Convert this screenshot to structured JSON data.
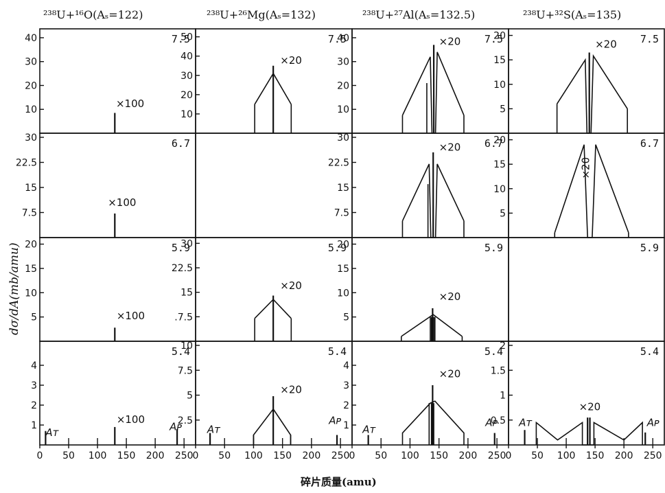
{
  "columns": [
    {
      "title": "²³⁸U+¹⁶O(Aₛ=122)"
    },
    {
      "title": "²³⁸U+²⁶Mg(Aₛ=132)"
    },
    {
      "title": "²³⁸U+²⁷Al(Aₛ=132.5)"
    },
    {
      "title": "²³⁸U+³²S(Aₛ=135)"
    }
  ],
  "energies": [
    "7.5",
    "6.7",
    "5.9",
    "5.4"
  ],
  "ylabel": "dσ/dA(mb/amu)",
  "xlabel": "碎片质量(amu)",
  "xticks": [
    0,
    50,
    100,
    150,
    200,
    250
  ],
  "xticklabels": [
    "0",
    "50",
    "100",
    "150",
    "200",
    "250"
  ],
  "marker_AT": "Aᴛ",
  "marker_AP": "Aᴘ",
  "chart_data": {
    "type": "line",
    "xlim": [
      0,
      270
    ],
    "panels": [
      {
        "row": 0,
        "col": 0,
        "energy": "7.5",
        "ylim": [
          0,
          42
        ],
        "yticks": [
          10,
          20,
          30,
          40
        ],
        "yticklabels": [
          "10",
          "20",
          "30",
          "40"
        ],
        "curve": [],
        "bars": [
          {
            "x": 130,
            "y": 8.5
          }
        ],
        "scale": "×100",
        "scale_pos": [
          132,
          11
        ]
      },
      {
        "row": 0,
        "col": 1,
        "energy": "7.5",
        "ylim": [
          0,
          52
        ],
        "yticks": [
          10,
          20,
          30,
          40,
          50
        ],
        "yticklabels": [
          "10",
          "20",
          "30",
          "40",
          "50"
        ],
        "curve": [
          [
            102,
            15
          ],
          [
            134,
            31
          ],
          [
            165,
            15
          ]
        ],
        "vlines": [
          [
            102,
            0,
            15
          ],
          [
            165,
            0,
            15
          ]
        ],
        "bars": [
          {
            "x": 134,
            "y": 35
          }
        ],
        "scale": "×20",
        "scale_pos": [
          146,
          36
        ]
      },
      {
        "row": 0,
        "col": 2,
        "energy": "7.5",
        "ylim": [
          0,
          42
        ],
        "yticks": [
          10,
          20,
          30,
          40
        ],
        "yticklabels": [
          "10",
          "20",
          "30",
          "40"
        ],
        "curve": [
          [
            87,
            7.5
          ],
          [
            135,
            32
          ],
          [
            138,
            0
          ],
          [
            144,
            0
          ],
          [
            147,
            34
          ],
          [
            193,
            7.5
          ]
        ],
        "vlines": [
          [
            87,
            0,
            7.5
          ],
          [
            129,
            0,
            21
          ],
          [
            193,
            0,
            7.5
          ]
        ],
        "bars": [
          {
            "x": 141,
            "y": 37
          }
        ],
        "scale": "×20",
        "scale_pos": [
          150,
          37
        ]
      },
      {
        "row": 0,
        "col": 3,
        "energy": "7.5",
        "ylim": [
          0,
          20.5
        ],
        "yticks": [
          5,
          10,
          15,
          20
        ],
        "yticklabels": [
          "5",
          "10",
          "15",
          "20"
        ],
        "curve": [
          [
            84,
            6
          ],
          [
            133,
            15
          ],
          [
            136,
            0
          ],
          [
            143,
            0
          ],
          [
            147,
            15.8
          ],
          [
            206,
            5
          ]
        ],
        "vlines": [
          [
            84,
            0,
            6
          ],
          [
            206,
            0,
            5
          ]
        ],
        "bars": [
          {
            "x": 140,
            "y": 16.5
          }
        ],
        "scale": "×20",
        "scale_pos": [
          150,
          17.5
        ]
      },
      {
        "row": 1,
        "col": 0,
        "energy": "6.7",
        "ylim": [
          0,
          30
        ],
        "yticks": [
          7.5,
          15,
          22.5,
          30
        ],
        "yticklabels": [
          "7.5",
          "15",
          "22.5",
          "30"
        ],
        "curve": [],
        "bars": [
          {
            "x": 130,
            "y": 7.2
          }
        ],
        "scale": "×100",
        "scale_pos": [
          118,
          9.5
        ]
      },
      {
        "row": 1,
        "col": 1,
        "energy": "",
        "ylim": [
          0,
          30
        ],
        "yticks": [],
        "yticklabels": [],
        "curve": [],
        "bars": [],
        "scale": "",
        "scale_pos": [
          0,
          0
        ]
      },
      {
        "row": 1,
        "col": 2,
        "energy": "6.7",
        "ylim": [
          0,
          30
        ],
        "yticks": [
          7.5,
          15,
          22.5,
          30
        ],
        "yticklabels": [
          "7.5",
          "15",
          "22.5",
          "30"
        ],
        "curve": [
          [
            87,
            5
          ],
          [
            133,
            22
          ],
          [
            136,
            0
          ],
          [
            144,
            0
          ],
          [
            147,
            22
          ],
          [
            193,
            5
          ]
        ],
        "vlines": [
          [
            87,
            0,
            5
          ],
          [
            193,
            0,
            5
          ],
          [
            131,
            0,
            16
          ]
        ],
        "bars": [
          {
            "x": 140,
            "y": 25.5
          }
        ],
        "scale": "×20",
        "scale_pos": [
          150,
          26
        ]
      },
      {
        "row": 1,
        "col": 3,
        "energy": "6.7",
        "ylim": [
          0,
          20.5
        ],
        "yticks": [
          5,
          10,
          15,
          20
        ],
        "yticklabels": [
          "5",
          "10",
          "15",
          "20"
        ],
        "curve": [
          [
            80,
            1
          ],
          [
            131,
            19
          ],
          [
            137,
            0
          ],
          [
            145,
            0
          ],
          [
            151,
            19
          ],
          [
            208,
            1
          ]
        ],
        "vlines": [
          [
            80,
            0,
            1
          ],
          [
            208,
            0,
            1
          ]
        ],
        "bars": [],
        "scale": "×20",
        "scale_pos": [
          140,
          12
        ],
        "scale_rotate": true
      },
      {
        "row": 2,
        "col": 0,
        "energy": "5.9",
        "ylim": [
          0,
          20.5
        ],
        "yticks": [
          5,
          10,
          15,
          20
        ],
        "yticklabels": [
          "5",
          "10",
          "15",
          "20"
        ],
        "curve": [],
        "bars": [
          {
            "x": 130,
            "y": 2.8
          }
        ],
        "scale": "×100",
        "scale_pos": [
          133,
          4.5
        ]
      },
      {
        "row": 2,
        "col": 1,
        "energy": "5.9",
        "ylim": [
          0,
          30.5
        ],
        "yticks": [
          7.5,
          15,
          22.5,
          30
        ],
        "yticklabels": [
          ".7.5",
          "15",
          "22.5",
          "30"
        ],
        "curve": [
          [
            102,
            7
          ],
          [
            134,
            12.8
          ],
          [
            165,
            7
          ]
        ],
        "vlines": [
          [
            102,
            0,
            7
          ],
          [
            165,
            0,
            7
          ]
        ],
        "bars": [
          {
            "x": 134,
            "y": 14
          }
        ],
        "scale": "×20",
        "scale_pos": [
          146,
          16
        ]
      },
      {
        "row": 2,
        "col": 2,
        "energy": "5.9",
        "ylim": [
          0,
          20.5
        ],
        "yticks": [
          5,
          10,
          15,
          20
        ],
        "yticklabels": [
          "5",
          "10",
          "15",
          "20"
        ],
        "curve": [
          [
            85,
            1
          ],
          [
            140,
            5.5
          ],
          [
            190,
            1
          ]
        ],
        "vlines": [
          [
            85,
            0,
            1
          ],
          [
            190,
            0,
            1
          ],
          [
            135,
            0,
            5
          ],
          [
            137,
            0,
            5
          ],
          [
            141,
            0,
            5
          ],
          [
            143,
            0,
            5
          ]
        ],
        "bars": [
          {
            "x": 139,
            "y": 6.8
          }
        ],
        "scale": "×20",
        "scale_pos": [
          150,
          8.5
        ]
      },
      {
        "row": 2,
        "col": 3,
        "energy": "5.9",
        "ylim": [
          0,
          20
        ],
        "yticks": [],
        "yticklabels": [],
        "curve": [],
        "bars": [],
        "scale": "",
        "scale_pos": [
          0,
          0
        ]
      },
      {
        "row": 3,
        "col": 0,
        "energy": "5.4",
        "ylim": [
          0,
          5
        ],
        "yticks": [
          1,
          2,
          3,
          4
        ],
        "yticklabels": [
          "1",
          "2",
          "3",
          "4"
        ],
        "curve": [],
        "bars": [
          {
            "x": 10,
            "y": 0.7
          },
          {
            "x": 130,
            "y": 0.9
          },
          {
            "x": 238,
            "y": 0.8
          }
        ],
        "minor_bars": [
          50,
          100,
          150,
          200,
          250
        ],
        "scale": "×100",
        "scale_pos": [
          133,
          1.1
        ],
        "AT": [
          10,
          0.45
        ],
        "AP": [
          225,
          0.75
        ]
      },
      {
        "row": 3,
        "col": 1,
        "energy": "5.4",
        "ylim": [
          0,
          10
        ],
        "yticks": [
          2.5,
          5,
          7.5,
          10
        ],
        "yticklabels": [
          "2.5",
          "5",
          "7.5",
          "10"
        ],
        "curve": [
          [
            100,
            0
          ],
          [
            100,
            1
          ],
          [
            134,
            3.6
          ],
          [
            164,
            1
          ],
          [
            164,
            0
          ]
        ],
        "vlines": [
          [
            100,
            0,
            1
          ],
          [
            164,
            0,
            1
          ]
        ],
        "bars": [
          {
            "x": 25,
            "y": 1.2
          },
          {
            "x": 134,
            "y": 4.9
          },
          {
            "x": 244,
            "y": 1
          }
        ],
        "minor_bars": [
          50,
          100,
          150,
          200,
          250
        ],
        "scale": "×20",
        "scale_pos": [
          146,
          5.2
        ],
        "AT": [
          20,
          1.2
        ],
        "AP": [
          230,
          2.1
        ]
      },
      {
        "row": 3,
        "col": 2,
        "energy": "5.4",
        "ylim": [
          0,
          5
        ],
        "yticks": [
          1,
          2,
          3,
          4
        ],
        "yticklabels": [
          "1",
          "2",
          "3",
          "4"
        ],
        "curve": [
          [
            87,
            0
          ],
          [
            87,
            0.6
          ],
          [
            135,
            2.1
          ],
          [
            143,
            2.2
          ],
          [
            193,
            0.6
          ],
          [
            193,
            0
          ]
        ],
        "vlines": [
          [
            133,
            0,
            2.1
          ],
          [
            137,
            0,
            2.1
          ],
          [
            141,
            0,
            2.1
          ]
        ],
        "bars": [
          {
            "x": 28,
            "y": 0.5
          },
          {
            "x": 139,
            "y": 3
          },
          {
            "x": 246,
            "y": 0.6
          }
        ],
        "minor_bars": [
          50,
          100,
          150,
          200,
          250
        ],
        "scale": "×20",
        "scale_pos": [
          150,
          3.4
        ],
        "AT": [
          18,
          0.6
        ],
        "AP": [
          230,
          0.95
        ]
      },
      {
        "row": 3,
        "col": 3,
        "energy": "5.4",
        "ylim": [
          0,
          2
        ],
        "yticks": [
          0.5,
          1,
          1.5,
          2
        ],
        "yticklabels": [
          "0.5",
          "1",
          "1.5",
          "2"
        ],
        "curve": [
          [
            48,
            0
          ],
          [
            48,
            0.45
          ],
          [
            85,
            0.1
          ],
          [
            128,
            0.45
          ],
          [
            128,
            0
          ],
          [
            148,
            0
          ],
          [
            148,
            0.45
          ],
          [
            200,
            0.1
          ],
          [
            232,
            0.45
          ],
          [
            232,
            0
          ]
        ],
        "vlines": [],
        "bars": [
          {
            "x": 28,
            "y": 0.3
          },
          {
            "x": 137,
            "y": 0.55
          },
          {
            "x": 141,
            "y": 0.55
          },
          {
            "x": 237,
            "y": 0.25
          }
        ],
        "minor_bars": [
          50,
          100,
          150,
          200,
          250
        ],
        "scale": "×20",
        "scale_pos": [
          122,
          0.7
        ],
        "AT": [
          18,
          0.38
        ],
        "AP": [
          240,
          0.38
        ]
      }
    ]
  }
}
